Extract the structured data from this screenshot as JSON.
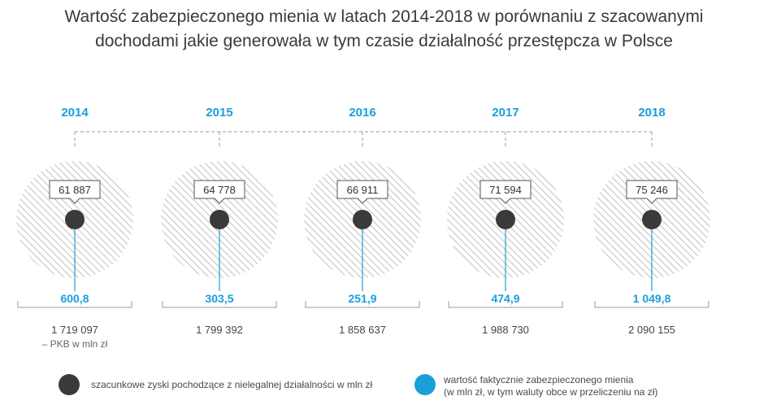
{
  "title_line1": "Wartość zabezpieczonego mienia w latach 2014-2018 w porównaniu z szacowanymi",
  "title_line2": "dochodami jakie generowała w tym czasie działalność przestępcza w Polsce",
  "chart_data": {
    "type": "bubble-timeline",
    "years": [
      "2014",
      "2015",
      "2016",
      "2017",
      "2018"
    ],
    "illegal_profits_mln_zl": [
      61887,
      64778,
      66911,
      71594,
      75246
    ],
    "illegal_profits_labels": [
      "61 887",
      "64 778",
      "66 911",
      "71 594",
      "75 246"
    ],
    "secured_value_mln_zl": [
      600.8,
      303.5,
      251.9,
      474.9,
      1049.8
    ],
    "secured_value_labels": [
      "600,8",
      "303,5",
      "251,9",
      "474,9",
      "1 049,8"
    ],
    "gdp_mln_zl": [
      1719097,
      1799392,
      1858637,
      1988730,
      2090155
    ],
    "gdp_labels": [
      "1 719 097",
      "1 799 392",
      "1 858 637",
      "1 988 730",
      "2 090 155"
    ],
    "gdp_note": "– PKB w mln zł"
  },
  "legend": {
    "dark_label": "szacunkowe zyski pochodzące z nielegalnej działalności w mln zł",
    "blue_label_line1": "wartość faktycznie zabezpieczonego mienia",
    "blue_label_line2": "(w mln zł, w tym waluty obce w przeliczeniu na zł)"
  },
  "colors": {
    "accent_blue": "#1a9fd9",
    "dark_dot": "#3a3a3a",
    "hatch": "#c8c8c8",
    "text": "#3a3a3a"
  }
}
